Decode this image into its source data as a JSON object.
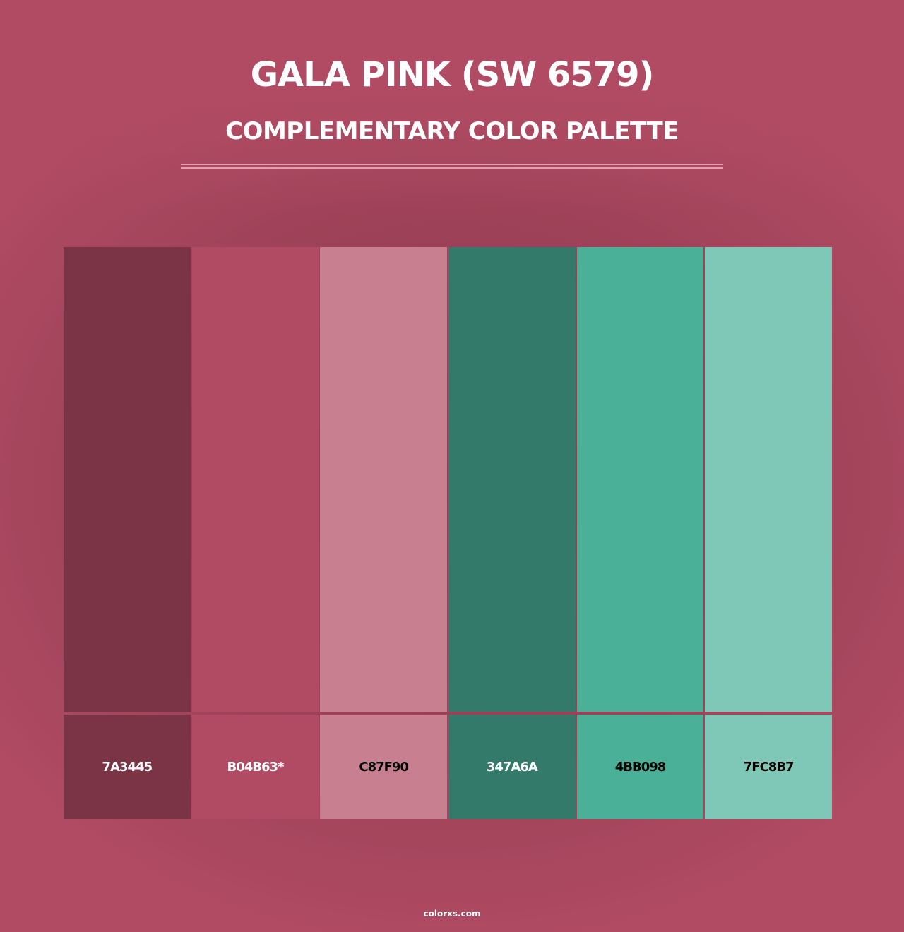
{
  "title": "GALA PINK (SW 6579)",
  "subtitle": "COMPLEMENTARY COLOR PALETTE",
  "swatches": [
    {
      "hex": "#7A3445",
      "label": "7A3445",
      "text_color": "#ffffff"
    },
    {
      "hex": "#B04B63",
      "label": "B04B63*",
      "text_color": "#ffffff"
    },
    {
      "hex": "#C87F90",
      "label": "C87F90",
      "text_color": "#000000"
    },
    {
      "hex": "#347A6A",
      "label": "347A6A",
      "text_color": "#ffffff"
    },
    {
      "hex": "#4BB098",
      "label": "4BB098",
      "text_color": "#000000"
    },
    {
      "hex": "#7FC8B7",
      "label": "7FC8B7",
      "text_color": "#000000"
    }
  ],
  "footer": "colorxs.com"
}
